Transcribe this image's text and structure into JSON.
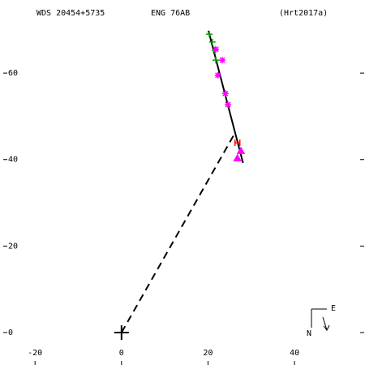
{
  "chart_data": {
    "type": "scatter",
    "title": "WDS 20454+5735",
    "subtitle": "ENG  76AB",
    "reference": "(Hrt2017a)",
    "xlim": [
      -28.1,
      56.3
    ],
    "ylim": [
      -7.5,
      76.9
    ],
    "xticks": [
      -20,
      0,
      20,
      40
    ],
    "yticks": [
      0,
      20,
      40,
      60
    ],
    "series": [
      {
        "marker": "plus",
        "color": "#00a000",
        "x": [
          20.3,
          21.0,
          21.6,
          21.8
        ],
        "y": [
          69.0,
          67.2,
          65.3,
          63.0
        ]
      },
      {
        "marker": "asterisk",
        "color": "#ff00ff",
        "x": [
          21.8,
          23.3,
          22.3,
          24.0,
          24.6
        ],
        "y": [
          65.5,
          63.0,
          59.5,
          55.3,
          52.7
        ]
      },
      {
        "marker": "h",
        "color": "#ff0000",
        "x": [
          26.8
        ],
        "y": [
          43.9
        ]
      },
      {
        "marker": "triangle",
        "color": "#ff00ff",
        "x": [
          27.6,
          26.8
        ],
        "y": [
          42.0,
          40.3
        ]
      }
    ],
    "lines": [
      {
        "style": "solid",
        "x": [
          20.1,
          28.1
        ],
        "y": [
          69.8,
          39.2
        ]
      },
      {
        "style": "dashed",
        "x": [
          0,
          26.1
        ],
        "y": [
          0,
          45.9
        ]
      }
    ],
    "compass": {
      "east": "E",
      "north": "N"
    }
  }
}
